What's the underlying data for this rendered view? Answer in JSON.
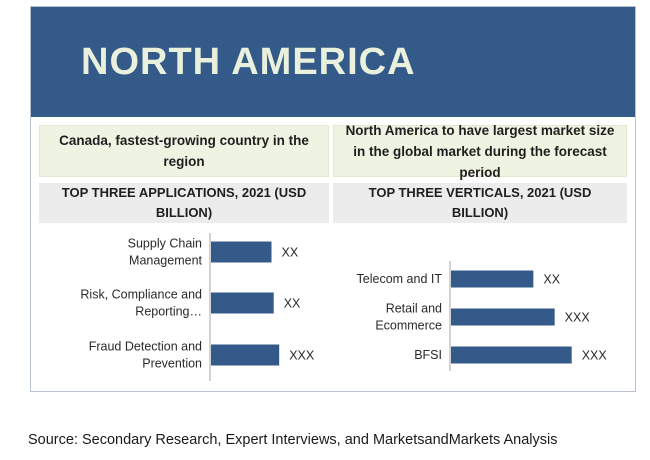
{
  "banner": {
    "title": "NORTH AMERICA"
  },
  "left_panel": {
    "headline": "Canada, fastest-growing country in the region",
    "subheading": "TOP THREE APPLICATIONS, 2021 (USD BILLION)"
  },
  "right_panel": {
    "headline": "North America to have largest market size in the global market  during the forecast period",
    "subheading": "TOP THREE VERTICALS, 2021 (USD BILLION)"
  },
  "chart_data": [
    {
      "type": "bar",
      "orientation": "horizontal",
      "title": "TOP THREE APPLICATIONS, 2021 (USD BILLION)",
      "categories": [
        "Supply Chain Management",
        "Risk, Compliance and Reporting…",
        "Fraud Detection and Prevention"
      ],
      "category_lines": [
        [
          "Supply Chain",
          "Management"
        ],
        [
          "Risk, Compliance and",
          "Reporting…"
        ],
        [
          "Fraud Detection and",
          "Prevention"
        ]
      ],
      "values": [
        0.55,
        0.57,
        0.62
      ],
      "data_labels": [
        "XX",
        "XX",
        "XXX"
      ],
      "bar_color": "#345a8a"
    },
    {
      "type": "bar",
      "orientation": "horizontal",
      "title": "TOP THREE VERTICALS, 2021 (USD BILLION)",
      "categories": [
        "Telecom and IT",
        "Retail and Ecommerce",
        "BFSI"
      ],
      "category_lines": [
        [
          "Telecom and IT"
        ],
        [
          "Retail and",
          "Ecommerce"
        ],
        [
          "BFSI"
        ]
      ],
      "values": [
        0.58,
        0.73,
        0.85
      ],
      "data_labels": [
        "XX",
        "XXX",
        "XXX"
      ],
      "bar_color": "#345a8a"
    }
  ],
  "source": "Source: Secondary Research, Expert Interviews, and MarketsandMarkets Analysis"
}
